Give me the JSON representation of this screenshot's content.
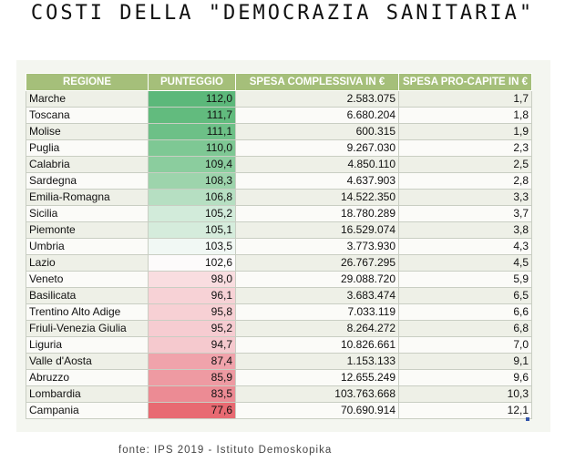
{
  "title": "COSTI DELLA \"DEMOCRAZIA SANITARIA\"",
  "table": {
    "headers": [
      "REGIONE",
      "PUNTEGGIO",
      "SPESA COMPLESSIVA IN €",
      "SPESA PRO-CAPITE IN €"
    ],
    "rows": [
      {
        "regione": "Marche",
        "punteggio": "112,0",
        "spesa": "2.583.075",
        "procapite": "1,7",
        "color": "#5cb87a"
      },
      {
        "regione": "Toscana",
        "punteggio": "111,7",
        "spesa": "6.680.204",
        "procapite": "1,8",
        "color": "#62bb7e"
      },
      {
        "regione": "Molise",
        "punteggio": "111,1",
        "spesa": "600.315",
        "procapite": "1,9",
        "color": "#6dc087"
      },
      {
        "regione": "Puglia",
        "punteggio": "110,0",
        "spesa": "9.267.030",
        "procapite": "2,3",
        "color": "#7ec894"
      },
      {
        "regione": "Calabria",
        "punteggio": "109,4",
        "spesa": "4.850.110",
        "procapite": "2,5",
        "color": "#8bcd9e"
      },
      {
        "regione": "Sardegna",
        "punteggio": "108,3",
        "spesa": "4.637.903",
        "procapite": "2,8",
        "color": "#9dd4ac"
      },
      {
        "regione": "Emilia-Romagna",
        "punteggio": "106,8",
        "spesa": "14.522.350",
        "procapite": "3,3",
        "color": "#b6dfc2"
      },
      {
        "regione": "Sicilia",
        "punteggio": "105,2",
        "spesa": "18.780.289",
        "procapite": "3,7",
        "color": "#d2ebda"
      },
      {
        "regione": "Piemonte",
        "punteggio": "105,1",
        "spesa": "16.529.074",
        "procapite": "3,8",
        "color": "#d5ecdc"
      },
      {
        "regione": "Umbria",
        "punteggio": "103,5",
        "spesa": "3.773.930",
        "procapite": "4,3",
        "color": "#f1f8f4"
      },
      {
        "regione": "Lazio",
        "punteggio": "102,6",
        "spesa": "26.767.295",
        "procapite": "4,5",
        "color": "#fdfbfb"
      },
      {
        "regione": "Veneto",
        "punteggio": "98,0",
        "spesa": "29.088.720",
        "procapite": "5,9",
        "color": "#f9dde0"
      },
      {
        "regione": "Basilicata",
        "punteggio": "96,1",
        "spesa": "3.683.474",
        "procapite": "6,5",
        "color": "#f7d2d6"
      },
      {
        "regione": "Trentino Alto Adige",
        "punteggio": "95,8",
        "spesa": "7.033.119",
        "procapite": "6,6",
        "color": "#f7d0d4"
      },
      {
        "regione": "Friuli-Venezia Giulia",
        "punteggio": "95,2",
        "spesa": "8.264.272",
        "procapite": "6,8",
        "color": "#f6ccd1"
      },
      {
        "regione": "Liguria",
        "punteggio": "94,7",
        "spesa": "10.826.661",
        "procapite": "7,0",
        "color": "#f5c9ce"
      },
      {
        "regione": "Valle d'Aosta",
        "punteggio": "87,4",
        "spesa": "1.153.133",
        "procapite": "9,1",
        "color": "#f0a3ab"
      },
      {
        "regione": "Abruzzo",
        "punteggio": "85,9",
        "spesa": "12.655.249",
        "procapite": "9,6",
        "color": "#ee9aa2"
      },
      {
        "regione": "Lombardia",
        "punteggio": "83,5",
        "spesa": "103.763.668",
        "procapite": "10,3",
        "color": "#ec8b94"
      },
      {
        "regione": "Campania",
        "punteggio": "77,6",
        "spesa": "70.690.914",
        "procapite": "12,1",
        "color": "#e86a72"
      }
    ]
  },
  "source": "fonte: IPS 2019 - Istituto Demoskopika"
}
